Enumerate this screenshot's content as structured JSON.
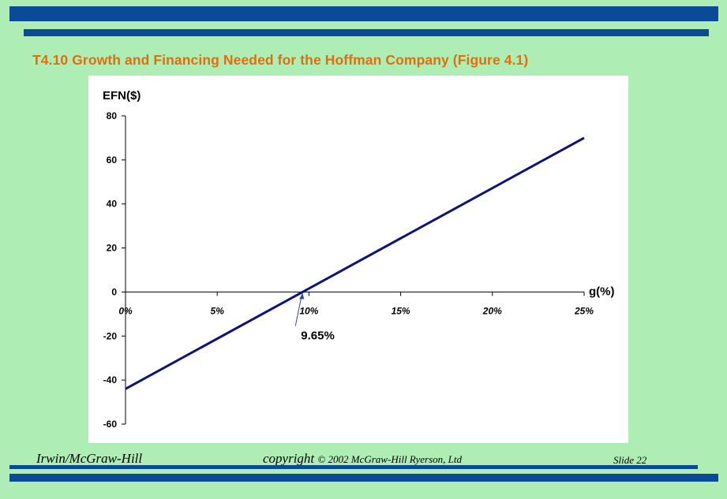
{
  "slide": {
    "title": "T4.10   Growth and Financing Needed for the Hoffman Company (Figure 4.1)",
    "footer": {
      "publisher": "Irwin/McGraw-Hill",
      "copyright_prefix": "copyright",
      "copyright_rest": "© 2002 McGraw-Hill Ryerson, Ltd",
      "slide_number": "Slide 22"
    },
    "colors": {
      "background": "#aeeeb4",
      "bars": "#0a4a96",
      "title": "#e46c0a",
      "line": "#0d137a"
    }
  },
  "chart_data": {
    "type": "line",
    "ylabel": "EFN($)",
    "xlabel": "g(%)",
    "x_tick_labels": [
      "0%",
      "5%",
      "10%",
      "15%",
      "20%",
      "25%"
    ],
    "x_ticks": [
      0,
      5,
      10,
      15,
      20,
      25
    ],
    "y_ticks": [
      80,
      60,
      40,
      20,
      0,
      -20,
      -40,
      -60
    ],
    "xlim": [
      0,
      25
    ],
    "ylim": [
      -60,
      80
    ],
    "grid": false,
    "series": [
      {
        "x": [
          0,
          25
        ],
        "y": [
          -44,
          70
        ]
      }
    ],
    "annotation": {
      "text": "9.65%",
      "x": 9.65,
      "y": 0
    }
  }
}
